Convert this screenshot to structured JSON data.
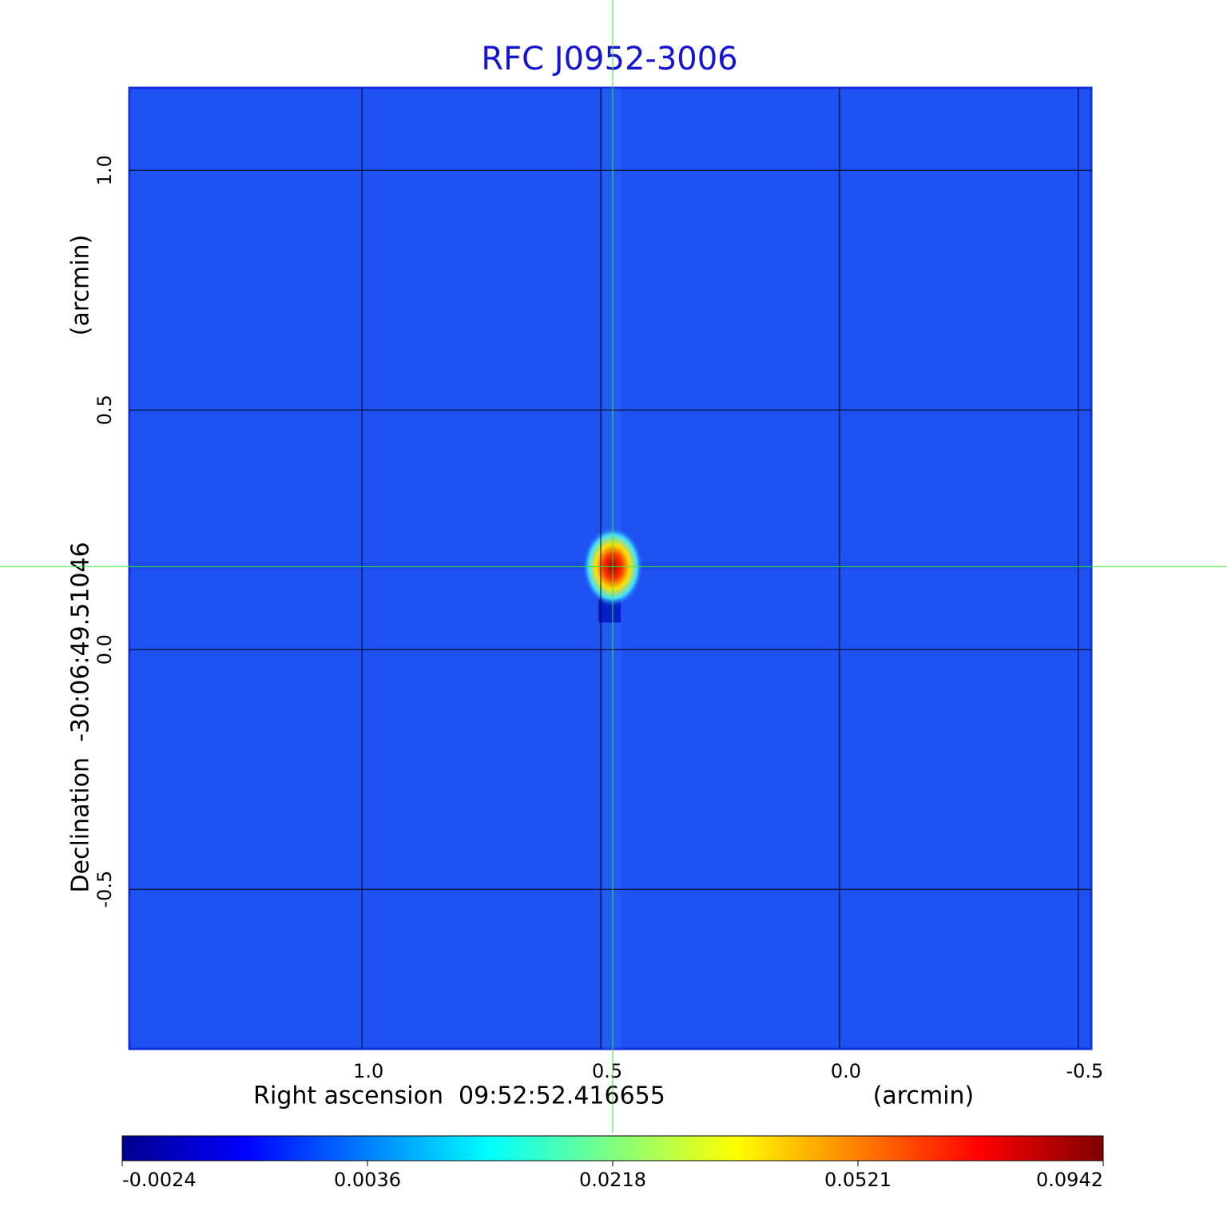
{
  "chart_data": {
    "type": "image",
    "title": "RFC J0952-3006",
    "xlabel": "Right ascension  09:52:52.416655",
    "xunit": "(arcmin)",
    "ylabel": "Declination  -30:06:49.51046",
    "yunit": "(arcmin)",
    "xlim": [
      1.487,
      -0.527
    ],
    "ylim": [
      -0.833,
      1.172
    ],
    "xticks": [
      {
        "value": 1,
        "label": "1.0"
      },
      0.5,
      {
        "value": 0,
        "label": "0.0"
      },
      -0.5
    ],
    "yticks": [
      {
        "value": 1,
        "label": "1.0"
      },
      0.5,
      {
        "value": 0,
        "label": "0.0"
      },
      -0.5
    ],
    "grid": true,
    "crosshair": {
      "x": 0.475,
      "y": 0.173,
      "color": "#33ee33"
    },
    "background": "#1f52f2",
    "colorbar": {
      "colors": [
        "#00008f",
        "#0000ff",
        "#0080ff",
        "#00ffff",
        "#80ff80",
        "#ffff00",
        "#ff8000",
        "#ff0000",
        "#800000"
      ],
      "ticks": [
        -0.0024,
        0.0036,
        0.0218,
        0.0521,
        0.0942
      ]
    }
  }
}
